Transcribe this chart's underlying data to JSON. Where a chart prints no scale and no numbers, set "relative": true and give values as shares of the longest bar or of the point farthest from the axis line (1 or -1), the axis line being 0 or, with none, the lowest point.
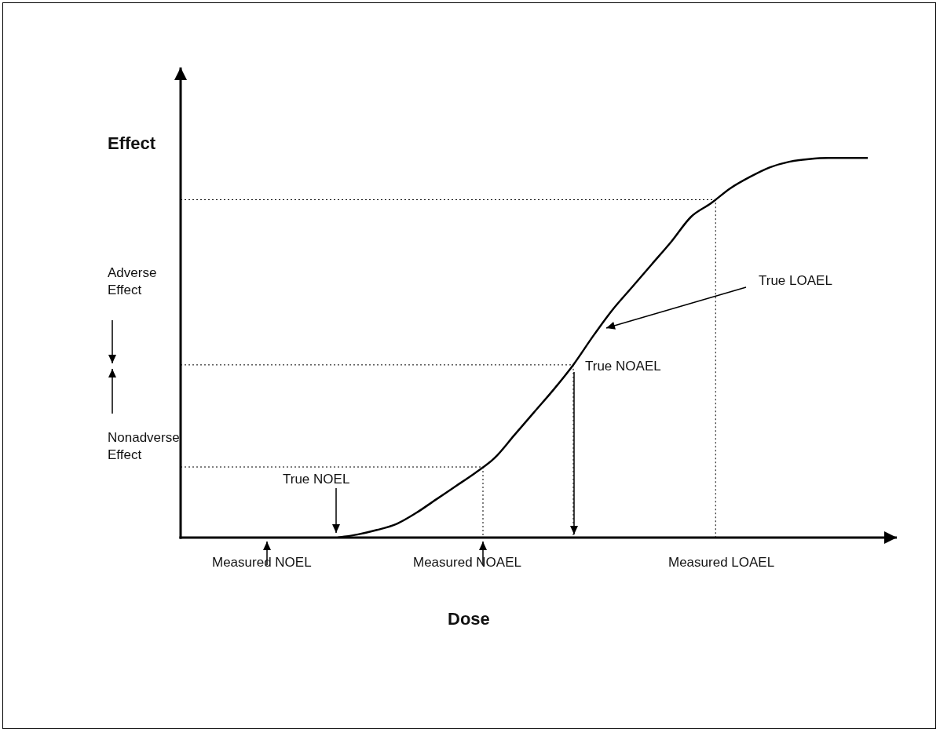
{
  "chart_data": {
    "type": "line",
    "relative": true,
    "xlabel": "Dose",
    "ylabel": "Effect",
    "categories": [
      null,
      null,
      null,
      null,
      null,
      null,
      null,
      null,
      null,
      null,
      null,
      null,
      null,
      null,
      null,
      null,
      null,
      null,
      null,
      null,
      null,
      null,
      null,
      null,
      null,
      null,
      null,
      null,
      null,
      null,
      null,
      null,
      null,
      null,
      null,
      null,
      null
    ],
    "series": [
      {
        "color": "#000000",
        "values": [
          null,
          null,
          null,
          null,
          null,
          null,
          null,
          null,
          0,
          0.008,
          0.02,
          0.036,
          0.065,
          0.1,
          0.135,
          0.17,
          0.21,
          0.27,
          0.33,
          0.39,
          0.455,
          0.53,
          0.6,
          0.66,
          0.72,
          0.78,
          0.845,
          0.88,
          0.92,
          0.95,
          0.975,
          0.99,
          0.997,
          1,
          1,
          1,
          null
        ]
      }
    ],
    "ref_lines": [
      {
        "axis": "y",
        "value": 0.186,
        "line_style": "dotted",
        "color": "#000000"
      },
      {
        "axis": "y",
        "value": 0.455,
        "line_style": "dotted",
        "color": "#000000"
      },
      {
        "axis": "y",
        "value": 0.89,
        "line_style": "dotted",
        "color": "#000000"
      }
    ],
    "annotations": [
      "True NOEL",
      "True NOAEL",
      "True LOAEL",
      "Adverse Effect",
      "Nonadverse Effect",
      "Measured NOEL",
      "Measured NOAEL",
      "Measured LOAEL"
    ],
    "marker": "none",
    "line_style": "solid"
  }
}
